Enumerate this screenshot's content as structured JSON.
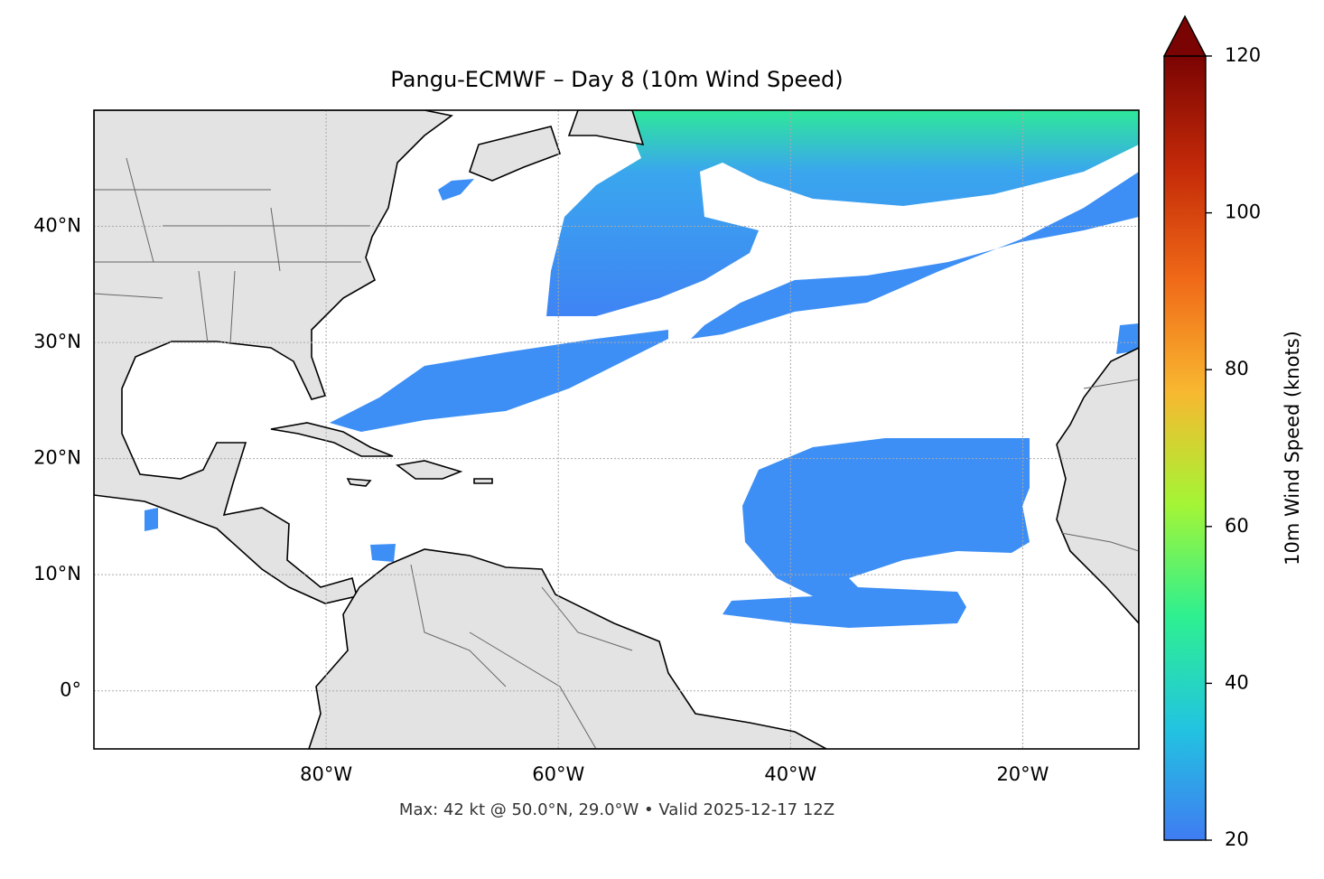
{
  "chart_data": {
    "type": "map",
    "title": "Pangu-ECMWF – Day 8 (10m Wind Speed)",
    "footer": "Max: 42 kt @ 50.0°N, 29.0°W • Valid 2025-12-17 12Z",
    "xlim": [
      -100,
      -10
    ],
    "ylim": [
      -5,
      50
    ],
    "xticks": [
      {
        "value": -80,
        "label": "80°W"
      },
      {
        "value": -60,
        "label": "60°W"
      },
      {
        "value": -40,
        "label": "40°W"
      },
      {
        "value": -20,
        "label": "20°W"
      }
    ],
    "yticks": [
      {
        "value": 0,
        "label": "0°"
      },
      {
        "value": 10,
        "label": "10°N"
      },
      {
        "value": 20,
        "label": "20°N"
      },
      {
        "value": 30,
        "label": "30°N"
      },
      {
        "value": 40,
        "label": "40°N"
      }
    ],
    "grid": true,
    "colorbar": {
      "label": "10m Wind Speed (knots)",
      "lim": [
        20,
        120
      ],
      "ticks": [
        20,
        40,
        60,
        80,
        100,
        120
      ],
      "colors": [
        "#3f7cf2",
        "#22c4e0",
        "#2ef090",
        "#a4f535",
        "#f8b830",
        "#f06a18",
        "#c42a08",
        "#7a0403"
      ]
    }
  }
}
